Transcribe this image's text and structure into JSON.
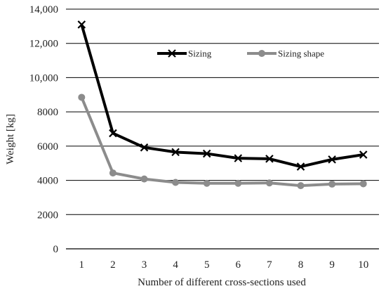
{
  "chart_data": {
    "type": "line",
    "xlabel": "Number of different cross-sections used",
    "ylabel": "Weight [kg]",
    "ylim": [
      0,
      14000
    ],
    "y_ticks": [
      0,
      2000,
      4000,
      6000,
      8000,
      10000,
      12000,
      14000
    ],
    "y_tick_labels": [
      "0",
      "2000",
      "4000",
      "6000",
      "8000",
      "10,000",
      "12,000",
      "14,000"
    ],
    "categories": [
      "1",
      "2",
      "3",
      "4",
      "5",
      "6",
      "7",
      "8",
      "9",
      "10"
    ],
    "grid": "horizontal",
    "legend_position": "top-right",
    "series": [
      {
        "name": "Sizing",
        "color": "#000000",
        "marker": "x",
        "values": [
          13100,
          6750,
          5920,
          5650,
          5560,
          5290,
          5260,
          4800,
          5220,
          5500
        ]
      },
      {
        "name": "Sizing shape",
        "color": "#8c8c8c",
        "marker": "circle",
        "values": [
          8850,
          4430,
          4080,
          3880,
          3830,
          3830,
          3850,
          3690,
          3780,
          3800
        ]
      }
    ]
  }
}
